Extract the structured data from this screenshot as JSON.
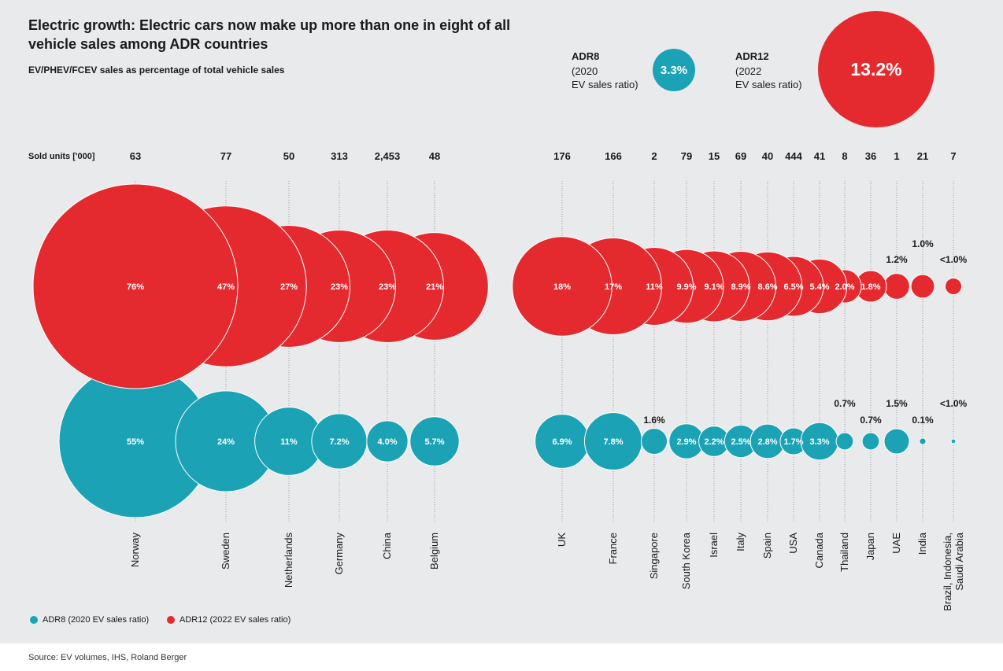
{
  "header": {
    "title": "Electric growth: Electric cars now make up more than one in eight of all vehicle sales among ADR countries",
    "subtitle": "EV/PHEV/FCEV sales as percentage of total vehicle sales"
  },
  "kpis": {
    "adr8": {
      "name": "ADR8",
      "line1": "(2020",
      "line2": "EV sales ratio)",
      "value": "3.3%"
    },
    "adr12": {
      "name": "ADR12",
      "line1": "(2022",
      "line2": "EV sales ratio)",
      "value": "13.2%"
    }
  },
  "colors": {
    "adr12": "#e52a2f",
    "adr8": "#1ba3b5",
    "background": "#e9eaeb",
    "grid": "#9a9a9a"
  },
  "chart_data": {
    "type": "bubble",
    "title": "EV/PHEV/FCEV sales as percentage of total vehicle sales",
    "sold_units_label": "Sold units ['000]",
    "series": [
      {
        "name": "ADR12 (2022 EV sales ratio)",
        "key": "adr12"
      },
      {
        "name": "ADR8 (2020 EV sales ratio)",
        "key": "adr8"
      }
    ],
    "countries": [
      {
        "name": "Norway",
        "sold": "63",
        "adr12": 76,
        "adr12_label": "76%",
        "adr8": 55,
        "adr8_label": "55%"
      },
      {
        "name": "Sweden",
        "sold": "77",
        "adr12": 47,
        "adr12_label": "47%",
        "adr8": 24,
        "adr8_label": "24%"
      },
      {
        "name": "Netherlands",
        "sold": "50",
        "adr12": 27,
        "adr12_label": "27%",
        "adr8": 11,
        "adr8_label": "11%"
      },
      {
        "name": "Germany",
        "sold": "313",
        "adr12": 23,
        "adr12_label": "23%",
        "adr8": 7.2,
        "adr8_label": "7.2%"
      },
      {
        "name": "China",
        "sold": "2,453",
        "adr12": 23,
        "adr12_label": "23%",
        "adr8": 4.0,
        "adr8_label": "4.0%"
      },
      {
        "name": "Belgium",
        "sold": "48",
        "adr12": 21,
        "adr12_label": "21%",
        "adr8": 5.7,
        "adr8_label": "5.7%"
      },
      {
        "name": "UK",
        "sold": "176",
        "adr12": 18,
        "adr12_label": "18%",
        "adr8": 6.9,
        "adr8_label": "6.9%"
      },
      {
        "name": "France",
        "sold": "166",
        "adr12": 17,
        "adr12_label": "17%",
        "adr8": 7.8,
        "adr8_label": "7.8%"
      },
      {
        "name": "Singapore",
        "sold": "2",
        "adr12": 11,
        "adr12_label": "11%",
        "adr8": 1.6,
        "adr8_label": "1.6%"
      },
      {
        "name": "South Korea",
        "sold": "79",
        "adr12": 9.9,
        "adr12_label": "9.9%",
        "adr8": 2.9,
        "adr8_label": "2.9%"
      },
      {
        "name": "Israel",
        "sold": "15",
        "adr12": 9.1,
        "adr12_label": "9.1%",
        "adr8": 2.2,
        "adr8_label": "2.2%"
      },
      {
        "name": "Italy",
        "sold": "69",
        "adr12": 8.9,
        "adr12_label": "8.9%",
        "adr8": 2.5,
        "adr8_label": "2.5%"
      },
      {
        "name": "Spain",
        "sold": "40",
        "adr12": 8.6,
        "adr12_label": "8.6%",
        "adr8": 2.8,
        "adr8_label": "2.8%"
      },
      {
        "name": "USA",
        "sold": "444",
        "adr12": 6.5,
        "adr12_label": "6.5%",
        "adr8": 1.7,
        "adr8_label": "1.7%"
      },
      {
        "name": "Canada",
        "sold": "41",
        "adr12": 5.4,
        "adr12_label": "5.4%",
        "adr8": 3.3,
        "adr8_label": "3.3%"
      },
      {
        "name": "Thailand",
        "sold": "8",
        "adr12": 2.0,
        "adr12_label": "2.0%",
        "adr8": 0.7,
        "adr8_label": "0.7%"
      },
      {
        "name": "Japan",
        "sold": "36",
        "adr12": 1.8,
        "adr12_label": "1.8%",
        "adr8": 0.7,
        "adr8_label": "0.7%"
      },
      {
        "name": "UAE",
        "sold": "1",
        "adr12": 1.2,
        "adr12_label": "1.2%",
        "adr8": 1.5,
        "adr8_label": "1.5%"
      },
      {
        "name": "India",
        "sold": "21",
        "adr12": 1.0,
        "adr12_label": "1.0%",
        "adr8": 0.1,
        "adr8_label": "0.1%"
      },
      {
        "name": "Brazil, Indonesia, Saudi Arabia",
        "name_lines": [
          "Brazil, Indonesia,",
          "Saudi Arabia"
        ],
        "sold": "7",
        "adr12": 0.5,
        "adr12_label": "<1.0%",
        "adr8": 0.05,
        "adr8_label": "<1.0%"
      }
    ]
  },
  "legend": {
    "adr8": "ADR8 (2020 EV sales ratio)",
    "adr12": "ADR12 (2022 EV sales ratio)"
  },
  "source": "Source: EV volumes, IHS, Roland Berger"
}
